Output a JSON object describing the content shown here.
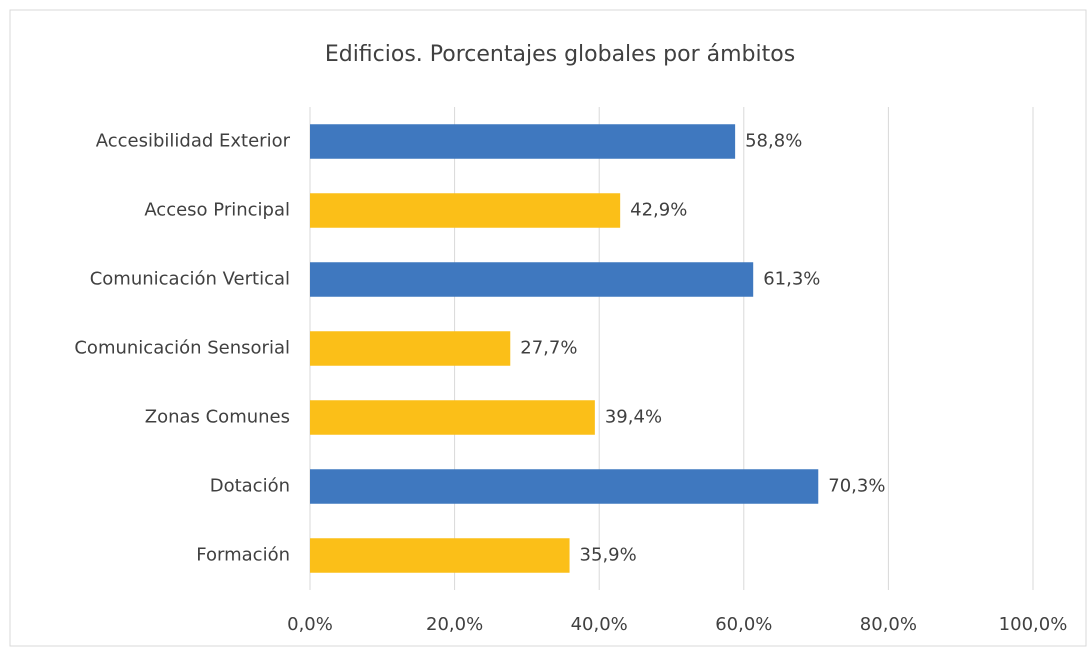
{
  "chart_data": {
    "type": "barh",
    "title": "Edificios.  Porcentajes globales por ámbitos",
    "categories": [
      "Accesibilidad Exterior",
      "Acceso Principal",
      "Comunicación Vertical",
      "Comunicación Sensorial",
      "Zonas Comunes",
      "Dotación",
      "Formación"
    ],
    "values": [
      58.8,
      42.9,
      61.3,
      27.7,
      39.4,
      70.3,
      35.9
    ],
    "value_labels": [
      "58,8%",
      "42,9%",
      "61,3%",
      "27,7%",
      "39,4%",
      "70,3%",
      "35,9%"
    ],
    "colors": [
      "#3f78bf",
      "#fbbf18",
      "#3f78bf",
      "#fbbf18",
      "#fbbf18",
      "#3f78bf",
      "#fbbf18"
    ],
    "xlim": [
      0,
      100
    ],
    "xticks": [
      {
        "value": 0,
        "label": "0,0%"
      },
      {
        "value": 20,
        "label": "20,0%"
      },
      {
        "value": 40,
        "label": "40,0%"
      },
      {
        "value": 60,
        "label": "60,0%"
      },
      {
        "value": 80,
        "label": "80,0%"
      },
      {
        "value": 100,
        "label": "100,0%"
      }
    ],
    "grid": true
  }
}
